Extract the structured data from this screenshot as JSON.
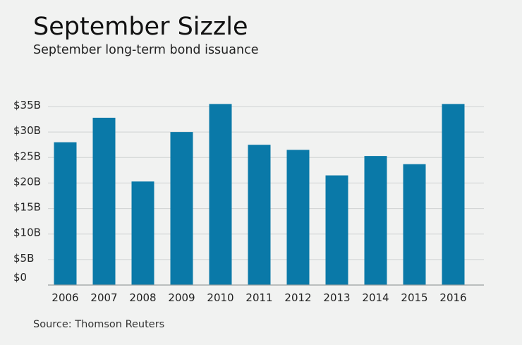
{
  "title": "September Sizzle",
  "subtitle": "September long-term bond issuance",
  "source": "Source: Thomson Reuters",
  "colors": {
    "bar": "#0a79a8",
    "grid": "#cfd2d2",
    "axis": "#9aa0a0",
    "background": "#f1f2f1"
  },
  "chart_data": {
    "type": "bar",
    "categories": [
      "2006",
      "2007",
      "2008",
      "2009",
      "2010",
      "2011",
      "2012",
      "2013",
      "2014",
      "2015",
      "2016"
    ],
    "values": [
      28,
      32.8,
      20.3,
      30,
      35.5,
      27.5,
      26.5,
      21.5,
      25.3,
      23.7,
      35.5
    ],
    "unit": "$B",
    "ylim": [
      0,
      35
    ],
    "yticks": [
      0,
      5,
      10,
      15,
      20,
      25,
      30,
      35
    ],
    "ytick_labels": [
      "$0",
      "$5B",
      "$10B",
      "$15B",
      "$20B",
      "$25B",
      "$30B",
      "$35B"
    ],
    "grid": true,
    "legend": "none"
  }
}
